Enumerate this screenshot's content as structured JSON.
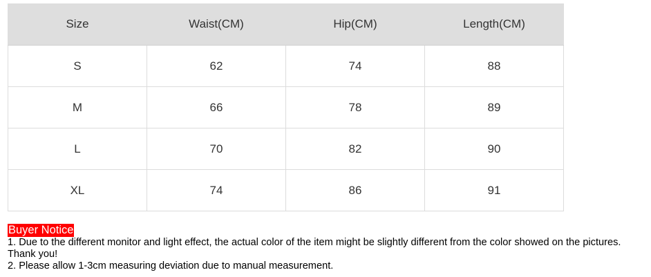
{
  "table": {
    "headers": [
      "Size",
      "Waist(CM)",
      "Hip(CM)",
      "Length(CM)"
    ],
    "rows": [
      [
        "S",
        "62",
        "74",
        "88"
      ],
      [
        "M",
        "66",
        "78",
        "89"
      ],
      [
        "L",
        "70",
        "82",
        "90"
      ],
      [
        "XL",
        "74",
        "86",
        "91"
      ]
    ]
  },
  "notice": {
    "title": "Buyer Notice",
    "line1": "1. Due to the different monitor and light effect, the actual color of the item might be slightly different from the color showed on the pictures. Thank you!",
    "line2": "2. Please allow 1-3cm measuring deviation due to manual measurement."
  },
  "colors": {
    "header_bg": "#dedede",
    "notice_title_bg": "#ff0000"
  }
}
